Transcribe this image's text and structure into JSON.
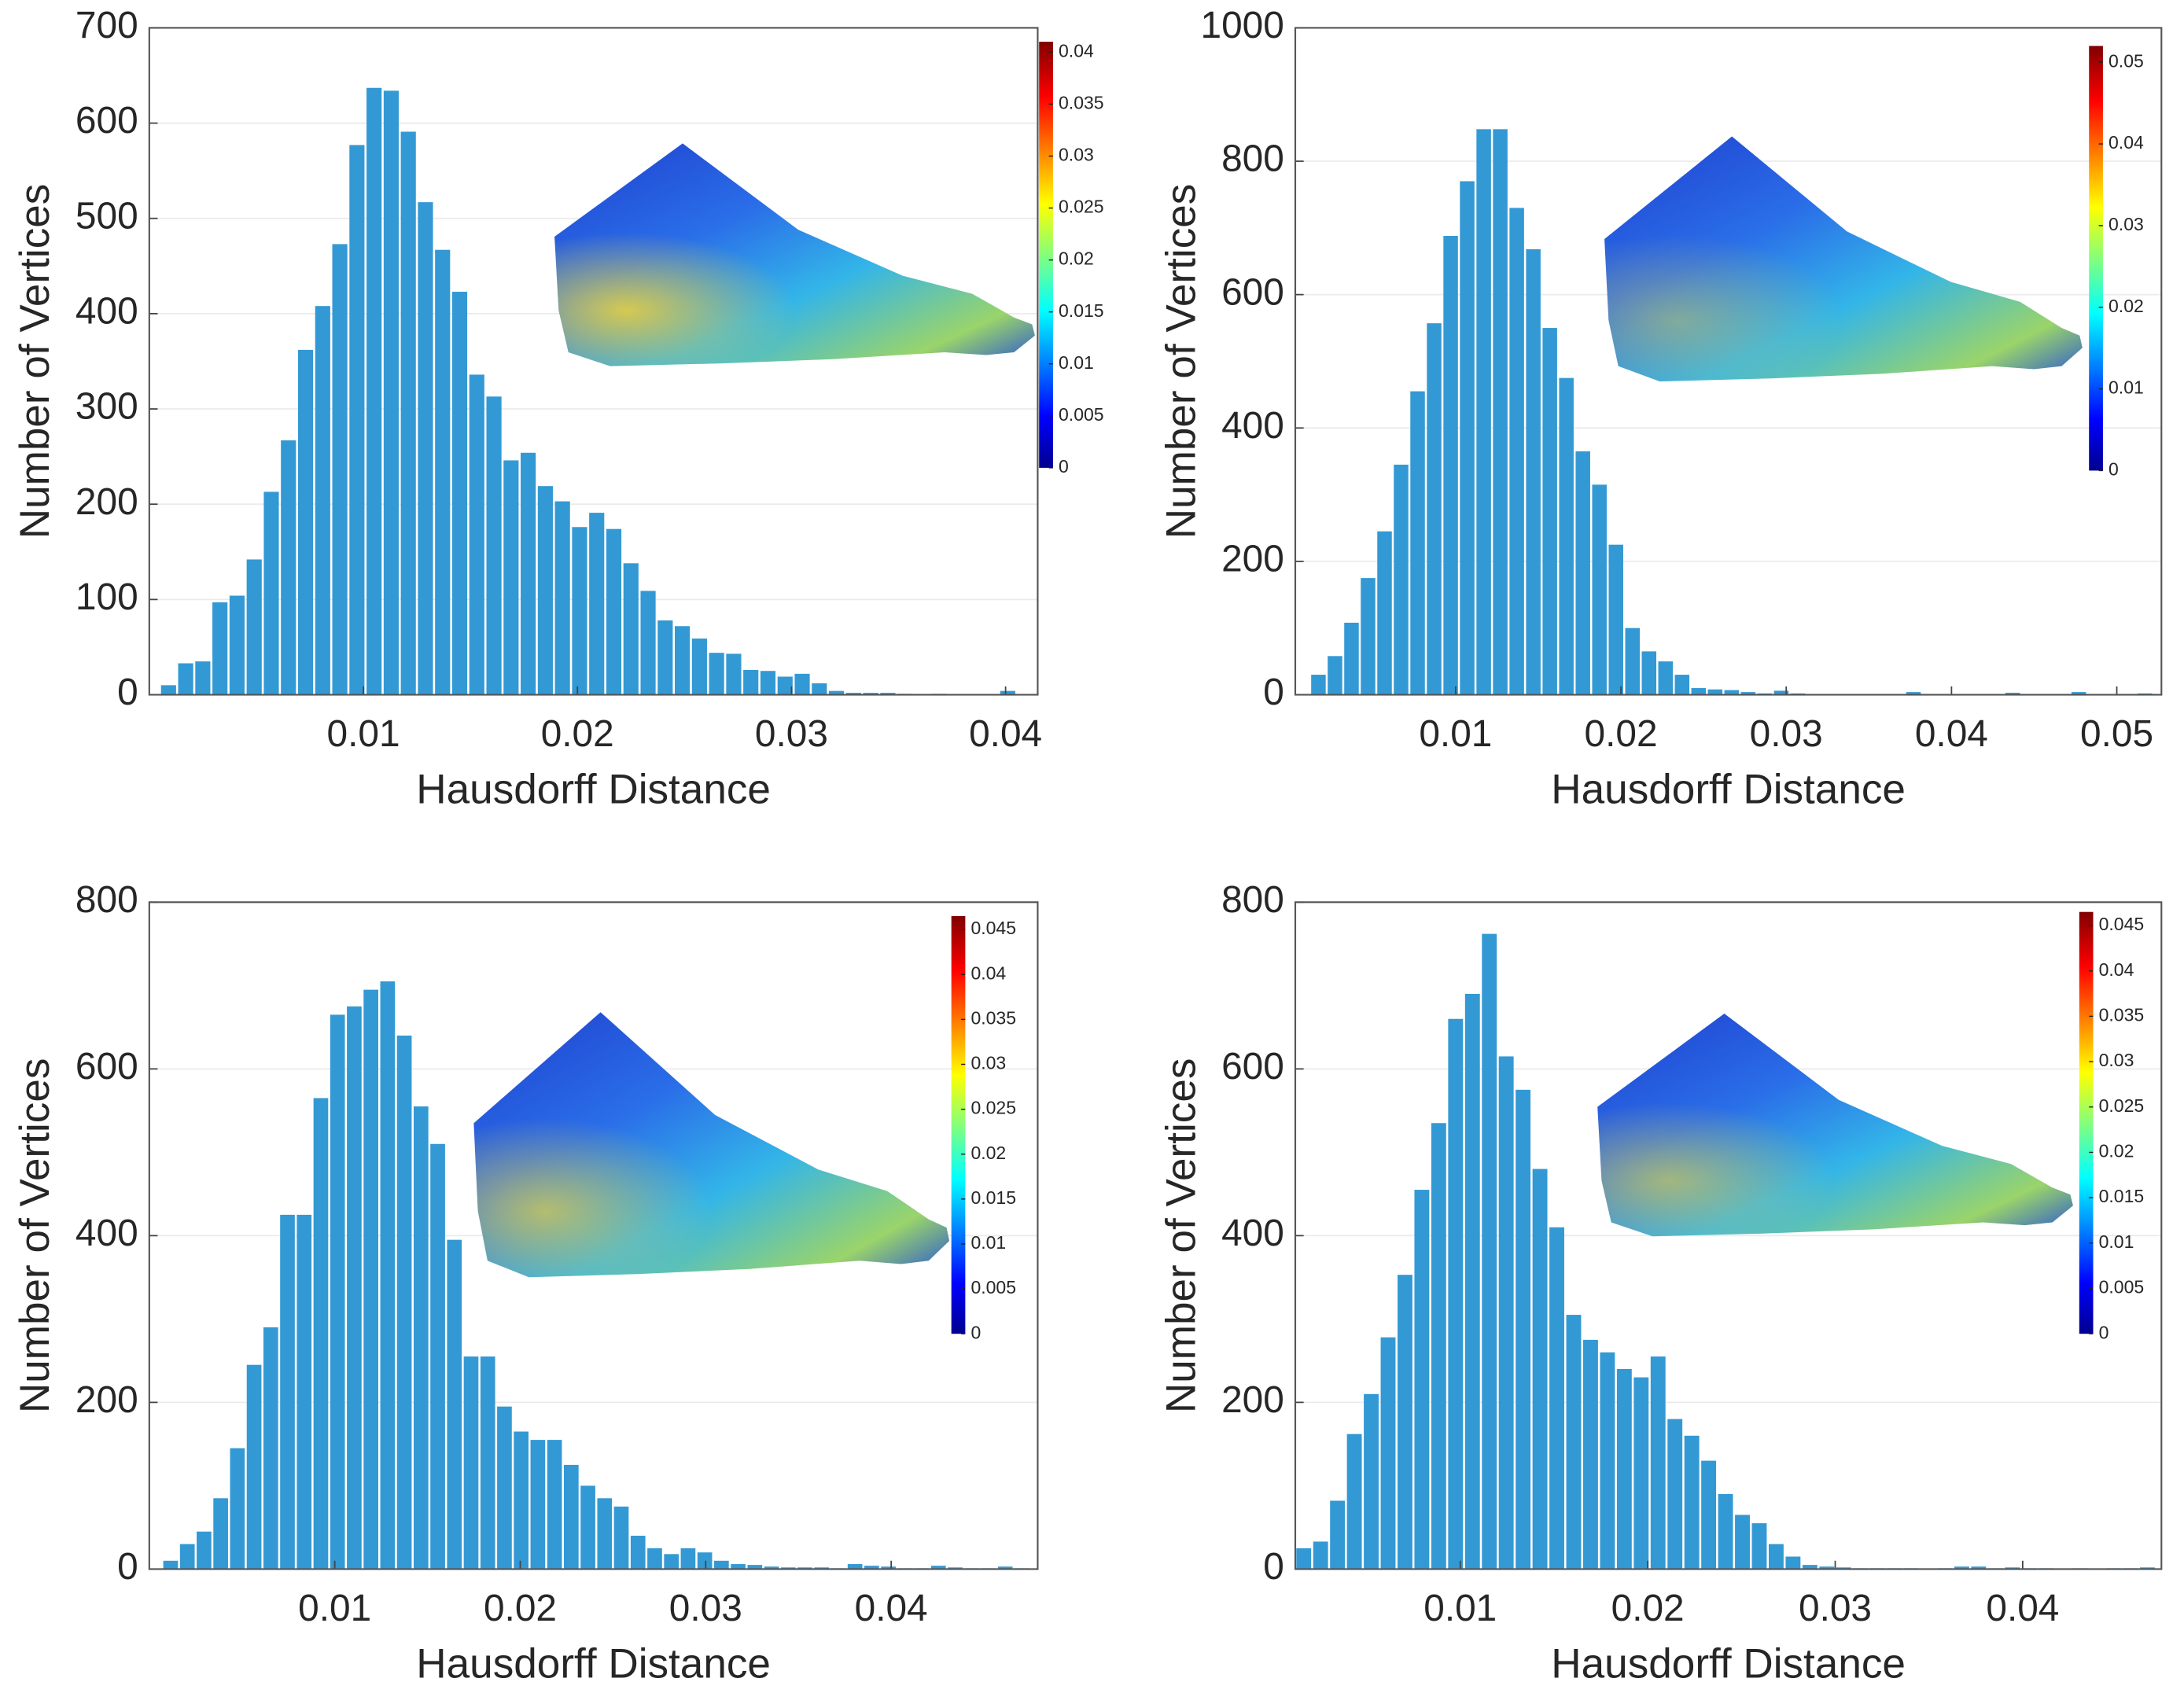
{
  "chart_data": [
    {
      "type": "histogram",
      "x_label": "Hausdorff Distance",
      "y_label": "Number of Vertices",
      "color": "#3399d4",
      "grid": true,
      "bins": [
        0.0005,
        0.0013,
        0.0021,
        0.0029,
        0.0037,
        0.0045,
        0.0053,
        0.0061,
        0.0069,
        0.0077,
        0.0085,
        0.0093,
        0.0101,
        0.0109,
        0.0117,
        0.0125,
        0.0133,
        0.0141,
        0.0149,
        0.0157,
        0.0165,
        0.0173,
        0.0181,
        0.0189,
        0.0197,
        0.0205,
        0.0213,
        0.0221,
        0.0229,
        0.0237,
        0.0245,
        0.0253,
        0.0261,
        0.0269,
        0.0277,
        0.0285,
        0.0293,
        0.0301,
        0.0309,
        0.0317,
        0.0325,
        0.0333,
        0.0341,
        0.0349,
        0.0357,
        0.0365,
        0.0373,
        0.0381,
        0.0389,
        0.0397,
        0.0405
      ],
      "values": [
        10,
        33,
        35,
        97,
        104,
        142,
        213,
        267,
        362,
        408,
        473,
        577,
        637,
        634,
        591,
        517,
        467,
        423,
        336,
        313,
        246,
        254,
        219,
        203,
        176,
        191,
        174,
        138,
        109,
        78,
        72,
        59,
        44,
        43,
        26,
        25,
        19,
        22,
        12,
        4,
        2,
        2,
        2,
        1,
        0,
        1,
        0,
        0,
        0,
        4
      ],
      "xlim": [
        0,
        0.0415
      ],
      "xticks": [
        0.01,
        0.02,
        0.03,
        0.04
      ],
      "ylim": [
        0,
        700
      ],
      "yticks": [
        0,
        100,
        200,
        300,
        400,
        500,
        600,
        700
      ],
      "colorbar": {
        "lim": [
          0,
          0.041
        ],
        "ticks": [
          0,
          0.005,
          0.01,
          0.015,
          0.02,
          0.025,
          0.03,
          0.035,
          0.04
        ]
      }
    },
    {
      "type": "histogram",
      "x_label": "Hausdorff Distance",
      "y_label": "Number of Vertices",
      "color": "#3399d4",
      "grid": true,
      "bins": [
        0.0012,
        0.0022,
        0.0032,
        0.0042,
        0.0052,
        0.0062,
        0.0072,
        0.0082,
        0.0092,
        0.0102,
        0.0112,
        0.0122,
        0.0132,
        0.0142,
        0.0152,
        0.0162,
        0.0172,
        0.0182,
        0.0192,
        0.0202,
        0.0212,
        0.0222,
        0.0232,
        0.0242,
        0.0252,
        0.0262,
        0.0272,
        0.0282,
        0.0292,
        0.0302,
        0.0312,
        0.0322,
        0.0332,
        0.0342,
        0.0352,
        0.0362,
        0.0372,
        0.0382,
        0.0392,
        0.0402,
        0.0412,
        0.0422,
        0.0432,
        0.0442,
        0.0452,
        0.0462,
        0.0472,
        0.0482,
        0.0492,
        0.0502,
        0.0512,
        0.0522
      ],
      "values": [
        30,
        58,
        108,
        175,
        245,
        345,
        455,
        557,
        688,
        770,
        848,
        848,
        730,
        668,
        550,
        475,
        365,
        315,
        225,
        100,
        65,
        50,
        30,
        10,
        8,
        7,
        4,
        2,
        6,
        2,
        1,
        1,
        1,
        0,
        1,
        1,
        4,
        1,
        0,
        0,
        0,
        1,
        3,
        0,
        0,
        0,
        4,
        0,
        0,
        0,
        2
      ],
      "xlim": [
        0.0003,
        0.0527
      ],
      "xticks": [
        0.01,
        0.02,
        0.03,
        0.04,
        0.05
      ],
      "ylim": [
        0,
        1000
      ],
      "yticks": [
        0,
        200,
        400,
        600,
        800,
        1000
      ],
      "colorbar": {
        "lim": [
          0,
          0.052
        ],
        "ticks": [
          0,
          0.01,
          0.02,
          0.03,
          0.04,
          0.05
        ]
      }
    },
    {
      "type": "histogram",
      "x_label": "Hausdorff Distance",
      "y_label": "Number of Vertices",
      "color": "#3399d4",
      "grid": true,
      "bins": [
        0.0007,
        0.0016,
        0.0025,
        0.0034,
        0.0043,
        0.0052,
        0.0061,
        0.007,
        0.0079,
        0.0088,
        0.0097,
        0.0106,
        0.0115,
        0.0124,
        0.0133,
        0.0142,
        0.0151,
        0.016,
        0.0169,
        0.0178,
        0.0187,
        0.0196,
        0.0205,
        0.0214,
        0.0223,
        0.0232,
        0.0241,
        0.025,
        0.0259,
        0.0268,
        0.0277,
        0.0286,
        0.0295,
        0.0304,
        0.0313,
        0.0322,
        0.0331,
        0.034,
        0.0349,
        0.0358,
        0.0367,
        0.0376,
        0.0385,
        0.0394,
        0.0403,
        0.0412,
        0.0421,
        0.043,
        0.0439,
        0.0448,
        0.0457,
        0.0466,
        0.0475
      ],
      "values": [
        10,
        30,
        45,
        85,
        145,
        245,
        290,
        425,
        425,
        565,
        665,
        675,
        695,
        705,
        640,
        555,
        510,
        395,
        255,
        255,
        195,
        165,
        155,
        155,
        125,
        100,
        85,
        75,
        40,
        25,
        18,
        25,
        20,
        10,
        6,
        5,
        3,
        2,
        2,
        2,
        1,
        6,
        4,
        3,
        1,
        1,
        4,
        2,
        1,
        1,
        3,
        1
      ],
      "xlim": [
        0,
        0.0479
      ],
      "xticks": [
        0.01,
        0.02,
        0.03,
        0.04
      ],
      "ylim": [
        0,
        800
      ],
      "yticks": [
        0,
        200,
        400,
        600,
        800
      ],
      "colorbar": {
        "lim": [
          0,
          0.0465
        ],
        "ticks": [
          0,
          0.005,
          0.01,
          0.015,
          0.02,
          0.025,
          0.03,
          0.035,
          0.04,
          0.045
        ]
      }
    },
    {
      "type": "histogram",
      "x_label": "Hausdorff Distance",
      "y_label": "Number of Vertices",
      "color": "#3399d4",
      "grid": true,
      "bins": [
        0.0012,
        0.0021,
        0.003,
        0.0039,
        0.0048,
        0.0057,
        0.0066,
        0.0075,
        0.0084,
        0.0093,
        0.0102,
        0.0111,
        0.012,
        0.0129,
        0.0138,
        0.0147,
        0.0156,
        0.0165,
        0.0174,
        0.0183,
        0.0192,
        0.0201,
        0.021,
        0.0219,
        0.0228,
        0.0237,
        0.0246,
        0.0255,
        0.0264,
        0.0273,
        0.0282,
        0.0291,
        0.03,
        0.0309,
        0.0318,
        0.0327,
        0.0336,
        0.0345,
        0.0354,
        0.0363,
        0.0372,
        0.0381,
        0.039,
        0.0399,
        0.0408,
        0.0417,
        0.0426,
        0.0435,
        0.0444,
        0.0453,
        0.0462,
        0.0471
      ],
      "values": [
        25,
        33,
        82,
        162,
        210,
        278,
        353,
        455,
        535,
        660,
        690,
        762,
        615,
        575,
        480,
        410,
        305,
        275,
        260,
        240,
        230,
        255,
        180,
        160,
        130,
        90,
        65,
        55,
        30,
        15,
        5,
        3,
        2,
        1,
        1,
        1,
        1,
        0,
        1,
        3,
        3,
        1,
        2,
        1,
        1,
        0,
        1,
        0,
        1,
        1,
        2
      ],
      "xlim": [
        0.0012,
        0.0474
      ],
      "xticks": [
        0.01,
        0.02,
        0.03,
        0.04
      ],
      "ylim": [
        0,
        800
      ],
      "yticks": [
        0,
        200,
        400,
        600,
        800
      ],
      "colorbar": {
        "lim": [
          0,
          0.0465
        ],
        "ticks": [
          0,
          0.005,
          0.01,
          0.015,
          0.02,
          0.025,
          0.03,
          0.035,
          0.04,
          0.045
        ]
      }
    }
  ]
}
